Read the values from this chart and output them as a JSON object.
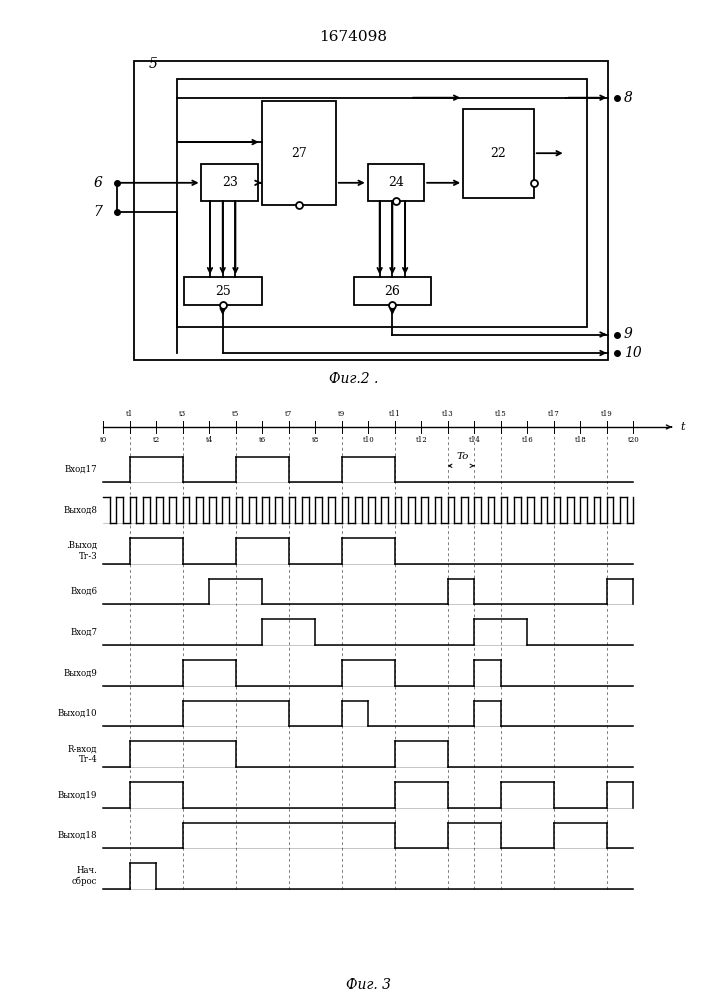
{
  "title": "1674098",
  "fig2_label": "Фиг.2 .",
  "fig3_label": "Фиг. 3",
  "bg_color": "#ffffff",
  "line_color": "#000000",
  "signal_labels": [
    "Вход17",
    "Выход8",
    ".Выход\nТг-3",
    "Вход6",
    "Вход7",
    "Выход9",
    "Выход10",
    "R-вход\nТг-4",
    "Выход19",
    "Выход18",
    "Нач.\nсброс"
  ]
}
